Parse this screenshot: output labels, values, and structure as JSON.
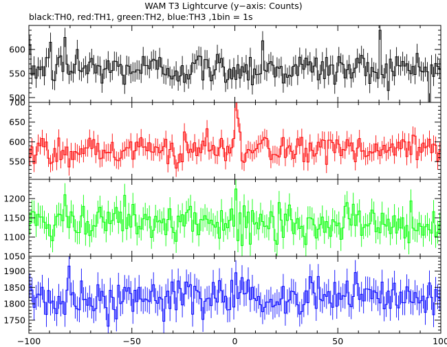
{
  "chart_data": {
    "type": "line",
    "title": "WAM T3 Lightcurve (y−axis: Counts)",
    "subtitle": "black:TH0, red:TH1, green:TH2, blue:TH3 ,1bin = 1s",
    "xlabel": "",
    "ylabel": "",
    "x_range": [
      -100,
      100
    ],
    "x_ticks": [
      -100,
      -50,
      0,
      50,
      100
    ],
    "x_tick_labels": [
      "−100",
      "−50",
      "0",
      "50",
      "100"
    ],
    "grid": false,
    "panels": [
      {
        "name": "TH0",
        "color": "#000000",
        "ylim": [
          490,
          650
        ],
        "y_ticks": [
          500,
          550,
          600
        ],
        "base": 560,
        "noise": 22,
        "err": 20,
        "spikes": [
          {
            "x": -90,
            "y": 615
          },
          {
            "x": -83,
            "y": 625
          },
          {
            "x": -77,
            "y": 600
          },
          {
            "x": 13,
            "y": 618
          },
          {
            "x": 70,
            "y": 640
          }
        ]
      },
      {
        "name": "TH1",
        "color": "#ff0000",
        "ylim": [
          505,
          700
        ],
        "y_ticks": [
          550,
          600,
          650,
          700
        ],
        "base": 580,
        "noise": 25,
        "err": 22,
        "spikes": [
          {
            "x": 0,
            "y": 700
          },
          {
            "x": 1,
            "y": 660
          },
          {
            "x": 2,
            "y": 625
          }
        ]
      },
      {
        "name": "TH2",
        "color": "#00ff00",
        "ylim": [
          1050,
          1250
        ],
        "y_ticks": [
          1050,
          1100,
          1150,
          1200
        ],
        "base": 1135,
        "noise": 32,
        "err": 30,
        "spikes": [
          {
            "x": -83,
            "y": 1210
          },
          {
            "x": 0,
            "y": 1225
          },
          {
            "x": 66,
            "y": 1170
          }
        ]
      },
      {
        "name": "TH3",
        "color": "#0000ff",
        "ylim": [
          1710,
          1945
        ],
        "y_ticks": [
          1750,
          1800,
          1850,
          1900
        ],
        "base": 1815,
        "noise": 38,
        "err": 38,
        "spikes": [
          {
            "x": -81,
            "y": 1915
          },
          {
            "x": 0,
            "y": 1895
          },
          {
            "x": 3,
            "y": 1880
          }
        ]
      }
    ]
  }
}
